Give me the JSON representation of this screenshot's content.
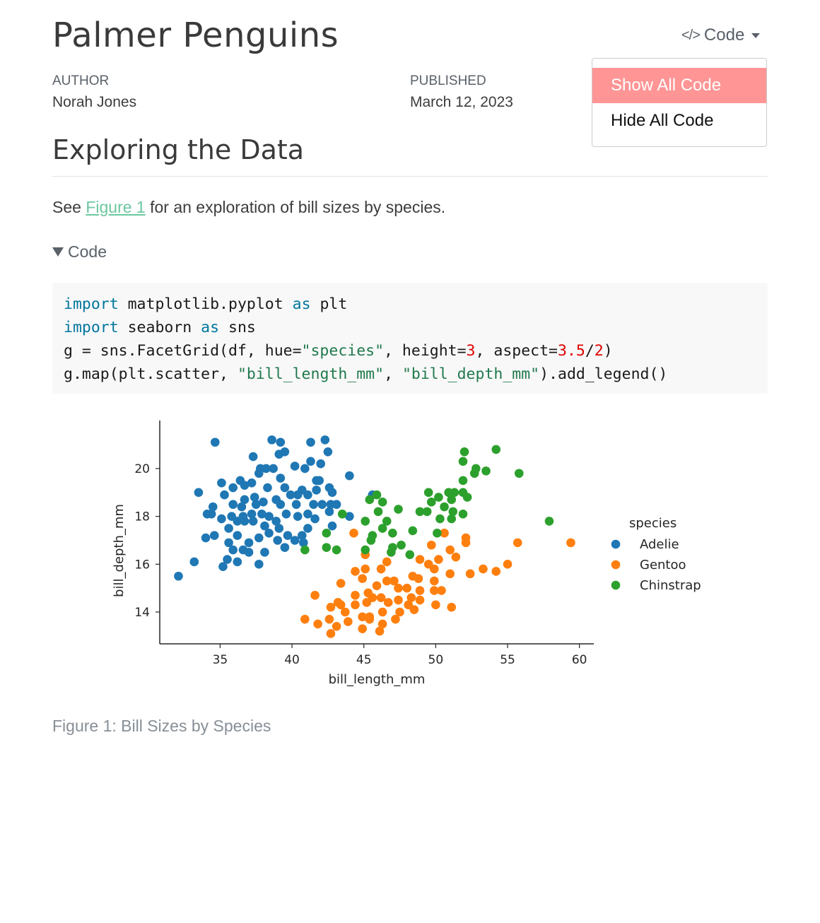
{
  "title": "Palmer Penguins",
  "meta": {
    "author_label": "AUTHOR",
    "author": "Norah Jones",
    "published_label": "PUBLISHED",
    "published": "March 12, 2023"
  },
  "code_menu": {
    "button_label": "Code",
    "icon": "code-brackets-icon",
    "items": [
      "Show All Code",
      "Hide All Code"
    ],
    "highlight_color": "#ff9595"
  },
  "section_heading": "Exploring the Data",
  "paragraph": {
    "before": "See ",
    "link": "Figure 1",
    "after": " for an exploration of bill sizes by species."
  },
  "code_fold": {
    "label": "Code",
    "expanded": true
  },
  "code_lines": [
    [
      {
        "t": "kw",
        "v": "import"
      },
      {
        "t": "",
        "v": " matplotlib.pyplot "
      },
      {
        "t": "kw",
        "v": "as"
      },
      {
        "t": "",
        "v": " plt"
      }
    ],
    [
      {
        "t": "kw",
        "v": "import"
      },
      {
        "t": "",
        "v": " seaborn "
      },
      {
        "t": "kw",
        "v": "as"
      },
      {
        "t": "",
        "v": " sns"
      }
    ],
    [
      {
        "t": "",
        "v": "g = sns.FacetGrid(df, hue="
      },
      {
        "t": "st",
        "v": "\"species\""
      },
      {
        "t": "",
        "v": ", height="
      },
      {
        "t": "nu",
        "v": "3"
      },
      {
        "t": "",
        "v": ", aspect="
      },
      {
        "t": "nu",
        "v": "3.5"
      },
      {
        "t": "",
        "v": "/"
      },
      {
        "t": "nu",
        "v": "2"
      },
      {
        "t": "",
        "v": ")"
      }
    ],
    [
      {
        "t": "",
        "v": "g.map(plt.scatter, "
      },
      {
        "t": "st",
        "v": "\"bill_length_mm\""
      },
      {
        "t": "",
        "v": ", "
      },
      {
        "t": "st",
        "v": "\"bill_depth_mm\""
      },
      {
        "t": "",
        "v": ").add_legend()"
      }
    ]
  ],
  "caption": "Figure 1: Bill Sizes by Species",
  "chart_data": {
    "type": "scatter",
    "xlabel": "bill_length_mm",
    "ylabel": "bill_depth_mm",
    "xlim": [
      30.8,
      61.0
    ],
    "ylim": [
      12.67,
      21.95
    ],
    "xticks": [
      35,
      40,
      45,
      50,
      55,
      60
    ],
    "yticks": [
      14,
      16,
      18,
      20
    ],
    "grid": false,
    "legend_title": "species",
    "legend_placement": "right",
    "series": [
      {
        "name": "Adelie",
        "color": "#1f77b4",
        "points": [
          [
            34.65,
            21.1
          ],
          [
            38.6,
            21.2
          ],
          [
            39.2,
            21.1
          ],
          [
            41.3,
            21.1
          ],
          [
            42.3,
            21.2
          ],
          [
            42.5,
            20.7
          ],
          [
            39.5,
            20.7
          ],
          [
            39.1,
            20.6
          ],
          [
            37.3,
            20.5
          ],
          [
            40.2,
            20.1
          ],
          [
            40.9,
            20.0
          ],
          [
            41.3,
            20.3
          ],
          [
            42.0,
            20.2
          ],
          [
            37.8,
            20.0
          ],
          [
            38.2,
            20.0
          ],
          [
            38.7,
            20.0
          ],
          [
            37.7,
            19.8
          ],
          [
            39.2,
            19.6
          ],
          [
            44.0,
            19.7
          ],
          [
            35.1,
            19.4
          ],
          [
            36.4,
            19.5
          ],
          [
            36.7,
            19.3
          ],
          [
            37.2,
            19.4
          ],
          [
            33.5,
            19.0
          ],
          [
            35.3,
            18.9
          ],
          [
            35.9,
            19.2
          ],
          [
            38.3,
            19.2
          ],
          [
            41.7,
            19.5
          ],
          [
            41.9,
            19.5
          ],
          [
            42.6,
            19.2
          ],
          [
            42.8,
            19.0
          ],
          [
            41.7,
            19.1
          ],
          [
            40.7,
            19.1
          ],
          [
            39.5,
            19.2
          ],
          [
            39.9,
            18.9
          ],
          [
            40.4,
            18.9
          ],
          [
            41.1,
            18.9
          ],
          [
            36.7,
            18.7
          ],
          [
            37.4,
            18.8
          ],
          [
            38.0,
            18.6
          ],
          [
            38.9,
            18.7
          ],
          [
            34.5,
            18.4
          ],
          [
            35.9,
            18.5
          ],
          [
            36.5,
            18.4
          ],
          [
            37.5,
            18.5
          ],
          [
            39.2,
            18.5
          ],
          [
            40.3,
            18.5
          ],
          [
            41.5,
            18.5
          ],
          [
            42.1,
            18.5
          ],
          [
            42.7,
            18.5
          ],
          [
            43.1,
            18.5
          ],
          [
            42.6,
            18.2
          ],
          [
            34.1,
            18.1
          ],
          [
            34.4,
            18.1
          ],
          [
            35.1,
            17.9
          ],
          [
            35.8,
            18.0
          ],
          [
            36.6,
            18.0
          ],
          [
            37.2,
            18.1
          ],
          [
            37.9,
            18.1
          ],
          [
            38.4,
            18.0
          ],
          [
            39.6,
            18.1
          ],
          [
            40.4,
            18.0
          ],
          [
            41.1,
            18.1
          ],
          [
            41.6,
            17.9
          ],
          [
            44.0,
            18.0
          ],
          [
            35.6,
            17.5
          ],
          [
            36.2,
            17.8
          ],
          [
            36.7,
            17.8
          ],
          [
            37.3,
            17.8
          ],
          [
            38.1,
            17.6
          ],
          [
            38.9,
            17.8
          ],
          [
            39.1,
            17.5
          ],
          [
            41.1,
            17.5
          ],
          [
            42.8,
            17.6
          ],
          [
            34.0,
            17.1
          ],
          [
            34.6,
            17.2
          ],
          [
            35.6,
            16.9
          ],
          [
            36.2,
            17.2
          ],
          [
            37.0,
            16.9
          ],
          [
            37.7,
            17.1
          ],
          [
            38.4,
            17.3
          ],
          [
            39.0,
            17.0
          ],
          [
            39.7,
            17.2
          ],
          [
            40.2,
            17.0
          ],
          [
            40.7,
            17.2
          ],
          [
            40.8,
            16.9
          ],
          [
            35.9,
            16.6
          ],
          [
            36.6,
            16.6
          ],
          [
            37.0,
            16.5
          ],
          [
            38.1,
            16.5
          ],
          [
            39.5,
            16.7
          ],
          [
            32.1,
            15.5
          ],
          [
            33.2,
            16.1
          ],
          [
            35.2,
            15.9
          ],
          [
            35.5,
            16.2
          ],
          [
            36.2,
            16.1
          ],
          [
            37.7,
            16.0
          ],
          [
            45.6,
            18.9
          ]
        ]
      },
      {
        "name": "Gentoo",
        "color": "#ff7f0e",
        "points": [
          [
            44.3,
            17.3
          ],
          [
            50.6,
            17.3
          ],
          [
            49.7,
            16.8
          ],
          [
            52.1,
            17.1
          ],
          [
            52.1,
            16.9
          ],
          [
            55.7,
            16.9
          ],
          [
            59.4,
            16.9
          ],
          [
            45.1,
            16.4
          ],
          [
            46.6,
            16.1
          ],
          [
            51.0,
            16.6
          ],
          [
            51.4,
            16.3
          ],
          [
            55.0,
            16.0
          ],
          [
            53.3,
            15.8
          ],
          [
            52.4,
            15.6
          ],
          [
            54.2,
            15.7
          ],
          [
            48.9,
            16.2
          ],
          [
            49.5,
            16.0
          ],
          [
            50.2,
            16.2
          ],
          [
            49.9,
            15.8
          ],
          [
            51.0,
            15.6
          ],
          [
            48.4,
            15.5
          ],
          [
            45.1,
            15.8
          ],
          [
            46.2,
            15.8
          ],
          [
            44.4,
            15.7
          ],
          [
            44.9,
            15.4
          ],
          [
            46.6,
            15.3
          ],
          [
            47.1,
            15.3
          ],
          [
            48.8,
            15.4
          ],
          [
            49.9,
            15.3
          ],
          [
            43.4,
            15.2
          ],
          [
            45.9,
            15.1
          ],
          [
            47.4,
            15.0
          ],
          [
            48.0,
            15.0
          ],
          [
            48.9,
            14.9
          ],
          [
            49.9,
            14.9
          ],
          [
            50.4,
            14.9
          ],
          [
            41.6,
            14.7
          ],
          [
            44.4,
            14.7
          ],
          [
            45.3,
            14.8
          ],
          [
            46.2,
            14.6
          ],
          [
            48.3,
            14.6
          ],
          [
            48.9,
            14.5
          ],
          [
            43.2,
            14.4
          ],
          [
            42.7,
            14.2
          ],
          [
            43.4,
            14.3
          ],
          [
            44.4,
            14.3
          ],
          [
            45.2,
            14.4
          ],
          [
            45.6,
            14.6
          ],
          [
            46.7,
            14.4
          ],
          [
            47.4,
            14.5
          ],
          [
            48.1,
            14.3
          ],
          [
            48.5,
            14.1
          ],
          [
            50.0,
            14.3
          ],
          [
            51.1,
            14.2
          ],
          [
            43.7,
            14.0
          ],
          [
            44.9,
            13.8
          ],
          [
            45.4,
            13.8
          ],
          [
            46.3,
            14.0
          ],
          [
            47.5,
            14.0
          ],
          [
            40.9,
            13.7
          ],
          [
            42.6,
            13.7
          ],
          [
            43.9,
            13.6
          ],
          [
            45.4,
            13.7
          ],
          [
            47.2,
            13.7
          ],
          [
            41.8,
            13.5
          ],
          [
            43.1,
            13.4
          ],
          [
            46.3,
            13.5
          ],
          [
            44.9,
            13.3
          ],
          [
            46.1,
            13.2
          ],
          [
            42.7,
            13.1
          ]
        ]
      },
      {
        "name": "Chinstrap",
        "color": "#2ca02c",
        "points": [
          [
            54.2,
            20.8
          ],
          [
            52.0,
            20.7
          ],
          [
            52.8,
            20.0
          ],
          [
            52.7,
            19.8
          ],
          [
            53.5,
            19.9
          ],
          [
            55.8,
            19.8
          ],
          [
            51.9,
            19.5
          ],
          [
            51.9,
            20.3
          ],
          [
            49.5,
            19.0
          ],
          [
            50.2,
            18.8
          ],
          [
            50.9,
            19.0
          ],
          [
            51.3,
            19.0
          ],
          [
            51.9,
            19.0
          ],
          [
            49.7,
            18.6
          ],
          [
            50.6,
            18.4
          ],
          [
            51.1,
            18.7
          ],
          [
            52.2,
            18.8
          ],
          [
            48.9,
            18.2
          ],
          [
            49.4,
            18.2
          ],
          [
            51.2,
            18.2
          ],
          [
            51.9,
            18.1
          ],
          [
            50.3,
            17.9
          ],
          [
            51.1,
            17.9
          ],
          [
            57.9,
            17.8
          ],
          [
            45.9,
            18.9
          ],
          [
            45.4,
            18.7
          ],
          [
            46.3,
            18.6
          ],
          [
            46.0,
            18.2
          ],
          [
            47.4,
            18.3
          ],
          [
            43.5,
            18.1
          ],
          [
            45.1,
            17.8
          ],
          [
            46.6,
            17.8
          ],
          [
            46.3,
            17.5
          ],
          [
            48.4,
            17.4
          ],
          [
            47.0,
            17.3
          ],
          [
            50.1,
            17.3
          ],
          [
            42.4,
            17.3
          ],
          [
            45.6,
            17.2
          ],
          [
            45.5,
            17.0
          ],
          [
            42.4,
            16.7
          ],
          [
            43.1,
            16.6
          ],
          [
            40.9,
            16.6
          ],
          [
            45.1,
            16.6
          ],
          [
            47.0,
            16.7
          ],
          [
            46.9,
            16.5
          ],
          [
            47.6,
            16.8
          ],
          [
            48.2,
            16.4
          ]
        ]
      }
    ]
  }
}
